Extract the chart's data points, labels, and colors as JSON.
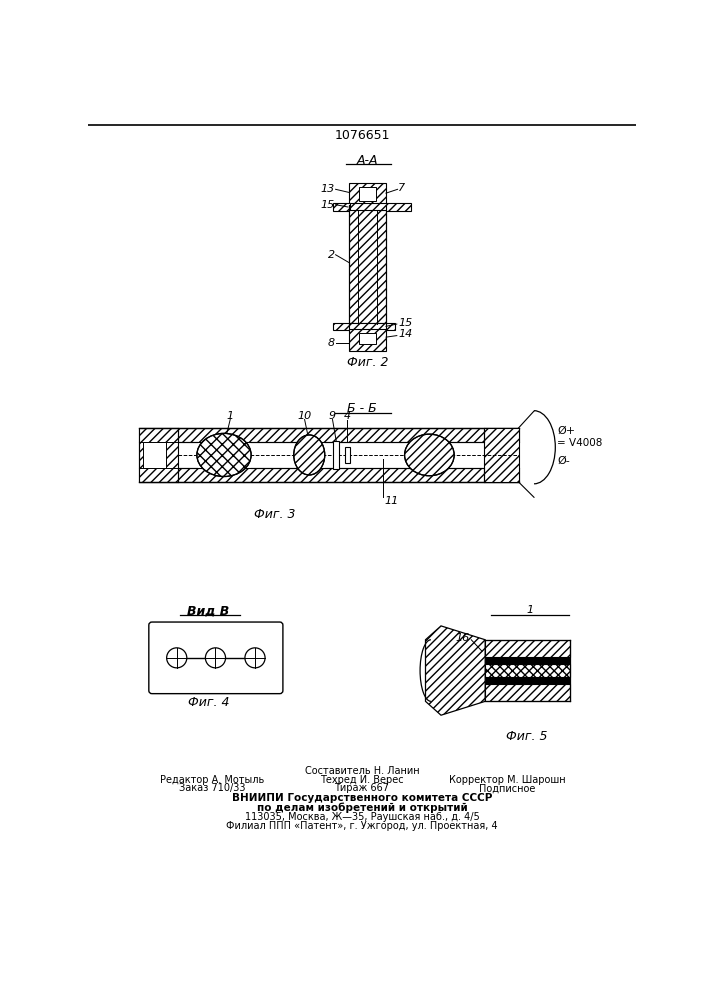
{
  "patent_number": "1076651",
  "bg_color": "#ffffff",
  "line_color": "#000000",
  "fig2_title": "А-А",
  "fig3_title": "Б - Б",
  "fig4_title": "Вид В",
  "fig2_caption": "Фиг. 2",
  "fig3_caption": "Фиг. 3",
  "fig4_caption": "Фиг. 4",
  "fig5_caption": "Фиг. 5",
  "fig5_label1": "1",
  "fig5_label16": "16",
  "footer_line1": "Составитель Н. Ланин",
  "footer_line2_left": "Редактор А. Мотыль",
  "footer_line2_mid": "Техред И. Верес",
  "footer_line2_right": "Корректор М. Шарошн",
  "footer_line3_left": "Заказ 710/33",
  "footer_line3_mid": "Тираж 667",
  "footer_line3_right": "Подписное",
  "footer_line4": "ВНИИПИ Государственного комитета СССР",
  "footer_line5": "по делам изобретений и открытий",
  "footer_line6": "113035, Москва, Ж—35, Раушская наб., д. 4/5",
  "footer_line7": "Филиал ППП «Патент», г. Ужгород, ул. Проектная, 4"
}
